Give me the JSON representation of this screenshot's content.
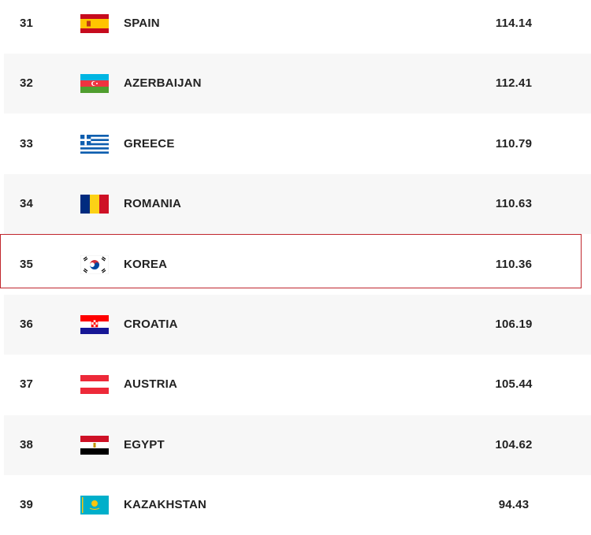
{
  "table": {
    "rows": [
      [
        31,
        "SPAIN",
        114.14
      ],
      [
        32,
        "AZERBAIJAN",
        112.41
      ],
      [
        33,
        "GREECE",
        110.79
      ],
      [
        34,
        "ROMANIA",
        110.63
      ],
      [
        35,
        "KOREA",
        110.36
      ],
      [
        36,
        "CROATIA",
        106.19
      ],
      [
        37,
        "AUSTRIA",
        105.44
      ],
      [
        38,
        "EGYPT",
        104.62
      ],
      [
        39,
        "KAZAKHSTAN",
        94.43
      ]
    ]
  }
}
